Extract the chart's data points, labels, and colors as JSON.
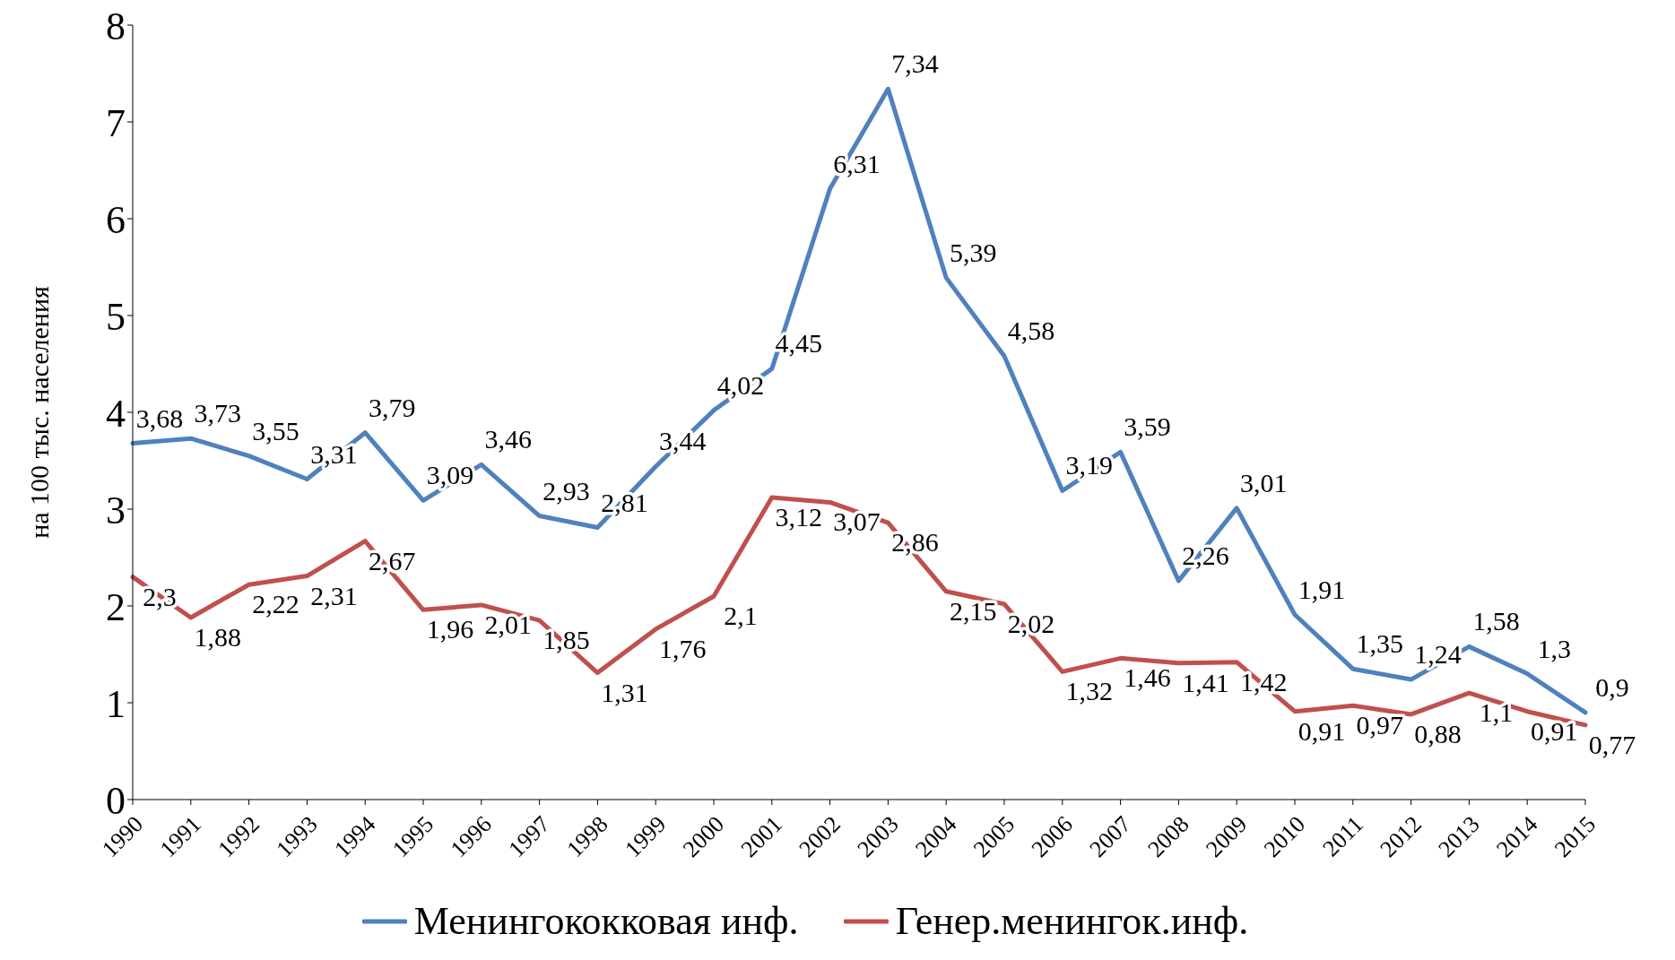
{
  "chart_data": {
    "type": "line",
    "ylabel": "на 100 тыс. населения",
    "categories": [
      "1990",
      "1991",
      "1992",
      "1993",
      "1994",
      "1995",
      "1996",
      "1997",
      "1998",
      "1999",
      "2000",
      "2001",
      "2002",
      "2003",
      "2004",
      "2005",
      "2006",
      "2007",
      "2008",
      "2009",
      "2010",
      "2011",
      "2012",
      "2013",
      "2014",
      "2015"
    ],
    "series": [
      {
        "name": "Менингококковая инф.",
        "color": "#4f81bd",
        "values": [
          3.68,
          3.73,
          3.55,
          3.31,
          3.79,
          3.09,
          3.46,
          2.93,
          2.81,
          3.44,
          4.02,
          4.45,
          6.31,
          7.34,
          5.39,
          4.58,
          3.19,
          3.59,
          2.26,
          3.01,
          1.91,
          1.35,
          1.24,
          1.58,
          1.3,
          0.9
        ],
        "value_labels": [
          "3,68",
          "3,73",
          "3,55",
          "3,31",
          "3,79",
          "3,09",
          "3,46",
          "2,93",
          "2,81",
          "3,44",
          "4,02",
          "4,45",
          "6,31",
          "7,34",
          "5,39",
          "4,58",
          "3,19",
          "3,59",
          "2,26",
          "3,01",
          "1,91",
          "1,35",
          "1,24",
          "1,58",
          "1,3",
          "0,9"
        ]
      },
      {
        "name": "Генер.менингок.инф.",
        "color": "#c0504d",
        "values": [
          2.3,
          1.88,
          2.22,
          2.31,
          2.67,
          1.96,
          2.01,
          1.85,
          1.31,
          1.76,
          2.1,
          3.12,
          3.07,
          2.86,
          2.15,
          2.02,
          1.32,
          1.46,
          1.41,
          1.42,
          0.91,
          0.97,
          0.88,
          1.1,
          0.91,
          0.77
        ],
        "value_labels": [
          "2,3",
          "1,88",
          "2,22",
          "2,31",
          "2,67",
          "1,96",
          "2,01",
          "1,85",
          "1,31",
          "1,76",
          "2,1",
          "3,12",
          "3,07",
          "2,86",
          "2,15",
          "2,02",
          "1,32",
          "1,46",
          "1,41",
          "1,42",
          "0,91",
          "0,97",
          "0,88",
          "1,1",
          "0,91",
          "0,77"
        ]
      }
    ],
    "ylim": [
      0,
      8
    ],
    "yticks": [
      0,
      1,
      2,
      3,
      4,
      5,
      6,
      7,
      8
    ],
    "grid": false,
    "legend": "bottom",
    "marker": "none",
    "line_style": "solid"
  }
}
